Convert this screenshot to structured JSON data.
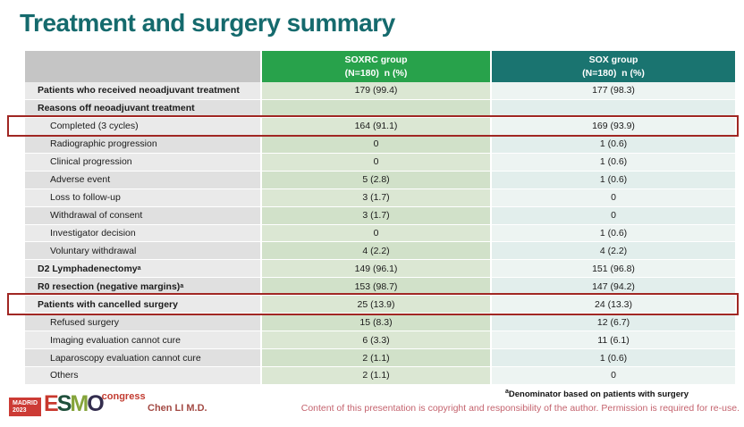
{
  "slide": {
    "title": "Treatment and surgery summary"
  },
  "table": {
    "header": {
      "soxrc": {
        "line1": "SOXRC group",
        "line2": "(N=180)  n (%)"
      },
      "sox": {
        "line1": "SOX group",
        "line2": "(N=180)  n (%)"
      }
    },
    "rows": [
      {
        "label": "Patients who received neoadjuvant treatment",
        "bold": true,
        "indent": false,
        "highlight": false,
        "soxrc": "179 (99.4)",
        "sox": "177 (98.3)"
      },
      {
        "label": "Reasons off neoadjuvant treatment",
        "bold": true,
        "indent": false,
        "highlight": false,
        "soxrc": "",
        "sox": ""
      },
      {
        "label": "Completed (3 cycles)",
        "bold": false,
        "indent": true,
        "highlight": true,
        "soxrc": "164 (91.1)",
        "sox": "169 (93.9)"
      },
      {
        "label": "Radiographic progression",
        "bold": false,
        "indent": true,
        "highlight": false,
        "soxrc": "0",
        "sox": "1 (0.6)"
      },
      {
        "label": "Clinical progression",
        "bold": false,
        "indent": true,
        "highlight": false,
        "soxrc": "0",
        "sox": "1 (0.6)"
      },
      {
        "label": "Adverse event",
        "bold": false,
        "indent": true,
        "highlight": false,
        "soxrc": "5 (2.8)",
        "sox": "1 (0.6)"
      },
      {
        "label": "Loss to follow-up",
        "bold": false,
        "indent": true,
        "highlight": false,
        "soxrc": "3 (1.7)",
        "sox": "0"
      },
      {
        "label": "Withdrawal of consent",
        "bold": false,
        "indent": true,
        "highlight": false,
        "soxrc": "3 (1.7)",
        "sox": "0"
      },
      {
        "label": "Investigator decision",
        "bold": false,
        "indent": true,
        "highlight": false,
        "soxrc": "0",
        "sox": "1 (0.6)"
      },
      {
        "label": "Voluntary withdrawal",
        "bold": false,
        "indent": true,
        "highlight": false,
        "soxrc": "4 (2.2)",
        "sox": "4 (2.2)"
      },
      {
        "label": "D2 Lymphadenectomy",
        "sup": "a",
        "bold": true,
        "indent": false,
        "highlight": false,
        "soxrc": "149 (96.1)",
        "sox": "151 (96.8)"
      },
      {
        "label": "R0 resection (negative margins)",
        "sup": "a",
        "bold": true,
        "indent": false,
        "highlight": false,
        "soxrc": "153 (98.7)",
        "sox": "147 (94.2)"
      },
      {
        "label": "Patients with cancelled surgery",
        "bold": true,
        "indent": false,
        "highlight": true,
        "soxrc": "25 (13.9)",
        "sox": "24 (13.3)"
      },
      {
        "label": "Refused surgery",
        "bold": false,
        "indent": true,
        "highlight": false,
        "soxrc": "15 (8.3)",
        "sox": "12 (6.7)"
      },
      {
        "label": "Imaging evaluation cannot cure",
        "bold": false,
        "indent": true,
        "highlight": false,
        "soxrc": "6 (3.3)",
        "sox": "11 (6.1)"
      },
      {
        "label": "Laparoscopy evaluation cannot cure",
        "bold": false,
        "indent": true,
        "highlight": false,
        "soxrc": "2 (1.1)",
        "sox": "1 (0.6)"
      },
      {
        "label": "Others",
        "bold": false,
        "indent": true,
        "highlight": false,
        "soxrc": "2 (1.1)",
        "sox": "0"
      }
    ]
  },
  "footer": {
    "logo": {
      "city": "MADRID",
      "year": "2023",
      "congress": "congress",
      "esmo_letters": [
        {
          "ch": "E",
          "color": "#c8382d"
        },
        {
          "ch": "S",
          "color": "#20503c"
        },
        {
          "ch": "M",
          "color": "#85a43b"
        },
        {
          "ch": "O",
          "color": "#332d4e"
        }
      ]
    },
    "author": "Chen LI M.D.",
    "footnote_sup": "a",
    "footnote": "Denominator based on patients with surgery",
    "copyright": "Content of this presentation is copyright and responsibility of the author. Permission is required for re-use."
  },
  "colors": {
    "title": "#156a6d",
    "soxrc_header": "#28a24b",
    "sox_header": "#1a7470",
    "highlight_border": "#a02723",
    "madrid_badge": "#cc3b35",
    "congress_text": "#c23b30",
    "author_text": "#a34a44",
    "copyright_text": "#c4636e"
  }
}
